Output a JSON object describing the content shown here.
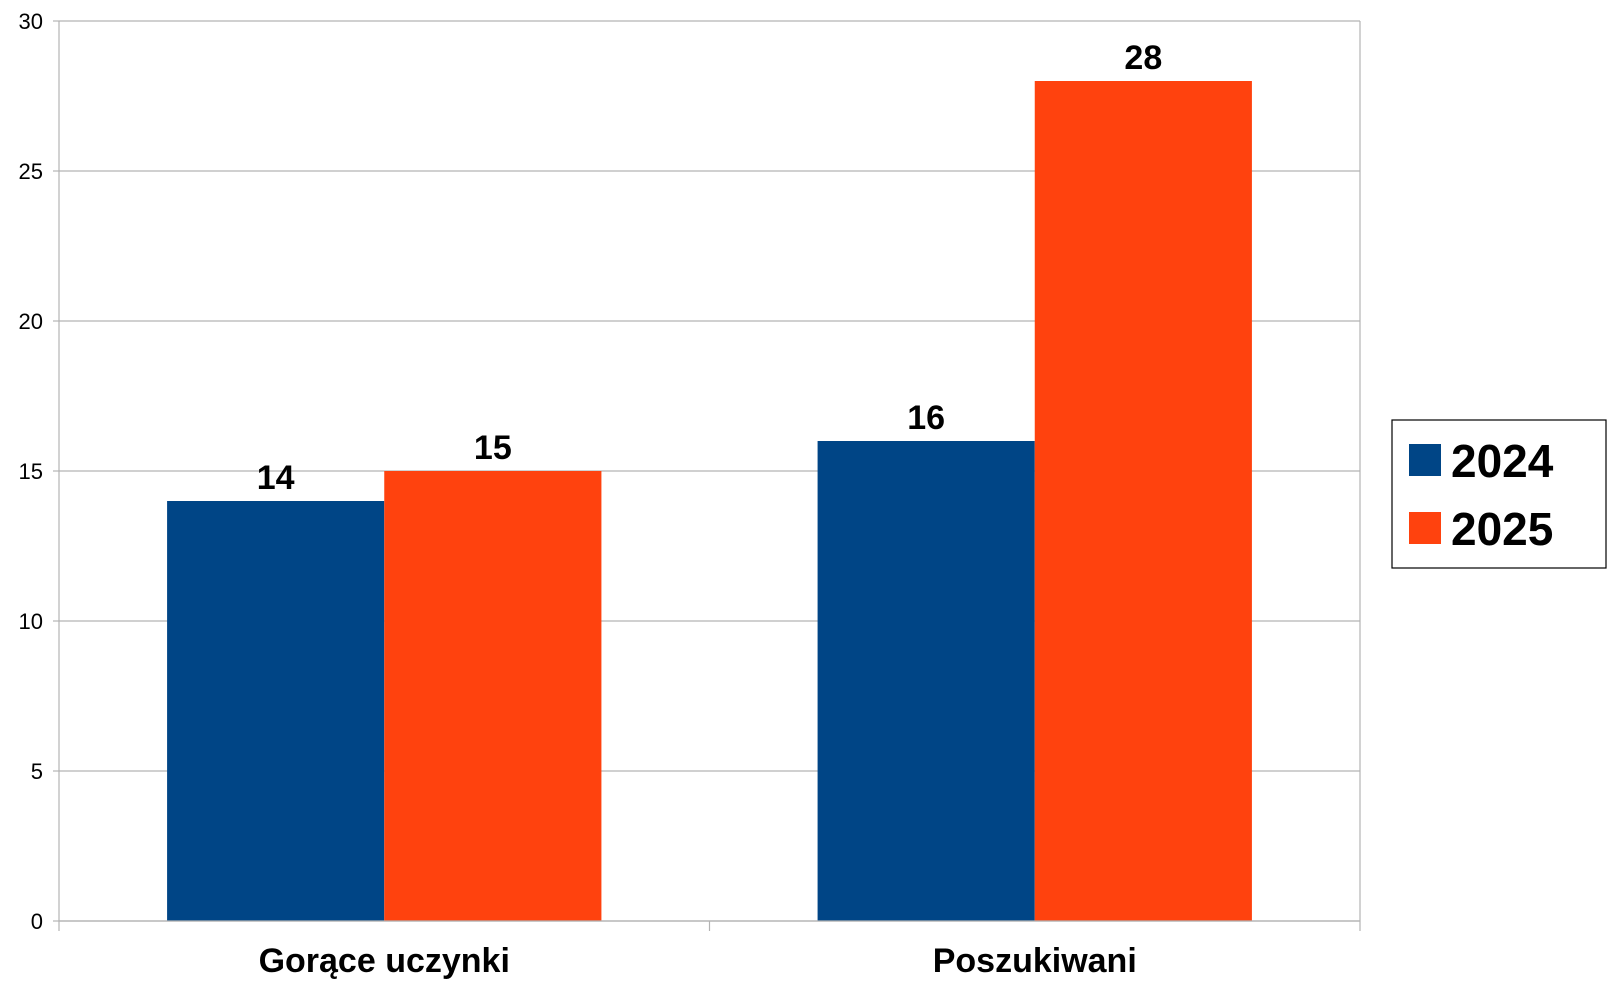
{
  "chart_data": {
    "type": "bar",
    "categories": [
      "Gorące uczynki",
      "Poszukiwani"
    ],
    "series": [
      {
        "name": "2024",
        "values": [
          14,
          16
        ],
        "color": "#004586"
      },
      {
        "name": "2025",
        "values": [
          15,
          28
        ],
        "color": "#ff420e"
      }
    ],
    "title": "",
    "xlabel": "",
    "ylabel": "",
    "ylim": [
      0,
      30
    ],
    "yticks": [
      0,
      5,
      10,
      15,
      20,
      25,
      30
    ],
    "grid": true,
    "legend_position": "right",
    "data_labels": true
  }
}
